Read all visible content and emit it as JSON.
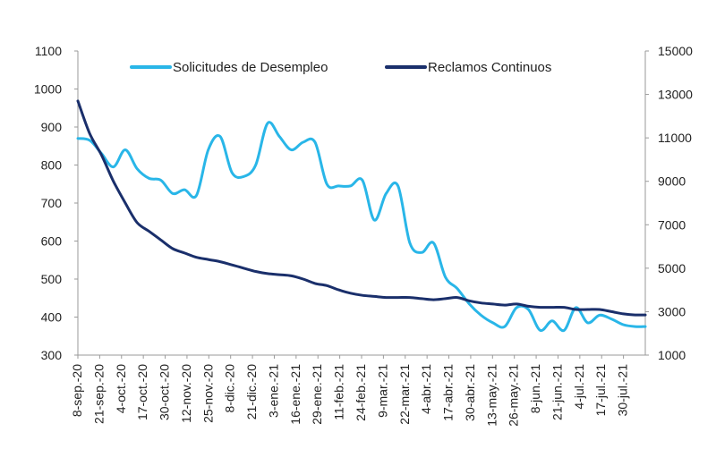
{
  "chart_data": {
    "type": "line",
    "title": "",
    "xlabel": "",
    "ylabel": "",
    "y_left": {
      "min": 300,
      "max": 1100,
      "ticks": [
        300,
        400,
        500,
        600,
        700,
        800,
        900,
        1000,
        1100
      ]
    },
    "y_right": {
      "min": 1000,
      "max": 15000,
      "ticks": [
        1000,
        3000,
        5000,
        7000,
        9000,
        11000,
        13000,
        15000
      ]
    },
    "x_tick_labels": [
      "8-sep.-20",
      "21-sep.-20",
      "4-oct.-20",
      "17-oct.-20",
      "30-oct.-20",
      "12-nov.-20",
      "25-nov.-20",
      "8-dic.-20",
      "21-dic.-20",
      "3-ene.-21",
      "16-ene.-21",
      "29-ene.-21",
      "11-feb.-21",
      "24-feb.-21",
      "9-mar.-21",
      "22-mar.-21",
      "4-abr.-21",
      "17-abr.-21",
      "30-abr.-21",
      "13-may.-21",
      "26-may.-21",
      "8-jun.-21",
      "21-jun.-21",
      "4-jul.-21",
      "17-jul.-21",
      "30-jul.-21"
    ],
    "x_range_days": [
      0,
      335
    ],
    "legend": [
      "Solicitudes de Desempleo",
      "Reclamos Continuos"
    ],
    "colors": {
      "solicitudes": "#29b6e8",
      "reclamos": "#1a2f6b",
      "axis": "#9a9a9a"
    },
    "series": [
      {
        "name": "Solicitudes de Desempleo",
        "axis": "left",
        "day": [
          0,
          7,
          14,
          21,
          28,
          35,
          42,
          49,
          56,
          63,
          70,
          77,
          84,
          91,
          98,
          105,
          112,
          119,
          126,
          133,
          140,
          147,
          154,
          161,
          168,
          175,
          182,
          189,
          196,
          203,
          210,
          217,
          224,
          231,
          238,
          245,
          252,
          259,
          266,
          273,
          280,
          287,
          294,
          301,
          308,
          315,
          322,
          329,
          335
        ],
        "values": [
          870,
          865,
          830,
          795,
          840,
          790,
          765,
          760,
          725,
          735,
          720,
          840,
          875,
          780,
          770,
          800,
          910,
          875,
          840,
          860,
          860,
          750,
          745,
          745,
          760,
          655,
          725,
          745,
          595,
          570,
          595,
          505,
          475,
          435,
          405,
          385,
          375,
          425,
          420,
          365,
          390,
          365,
          425,
          385,
          405,
          395,
          380,
          375,
          375
        ]
      },
      {
        "name": "Reclamos Continuos",
        "axis": "right",
        "day": [
          0,
          7,
          14,
          21,
          28,
          35,
          42,
          49,
          56,
          63,
          70,
          77,
          84,
          91,
          98,
          105,
          112,
          119,
          126,
          133,
          140,
          147,
          154,
          161,
          168,
          175,
          182,
          189,
          196,
          203,
          210,
          217,
          224,
          231,
          238,
          245,
          252,
          259,
          266,
          273,
          280,
          287,
          294,
          301,
          308,
          315,
          322,
          329,
          335
        ],
        "values": [
          12700,
          11200,
          10200,
          9000,
          8000,
          7100,
          6700,
          6300,
          5900,
          5700,
          5500,
          5400,
          5300,
          5150,
          5000,
          4850,
          4750,
          4700,
          4650,
          4500,
          4300,
          4200,
          4000,
          3850,
          3750,
          3700,
          3650,
          3650,
          3650,
          3600,
          3550,
          3600,
          3650,
          3500,
          3400,
          3350,
          3300,
          3350,
          3250,
          3200,
          3200,
          3200,
          3100,
          3100,
          3100,
          3000,
          2900,
          2850,
          2850
        ]
      }
    ]
  }
}
